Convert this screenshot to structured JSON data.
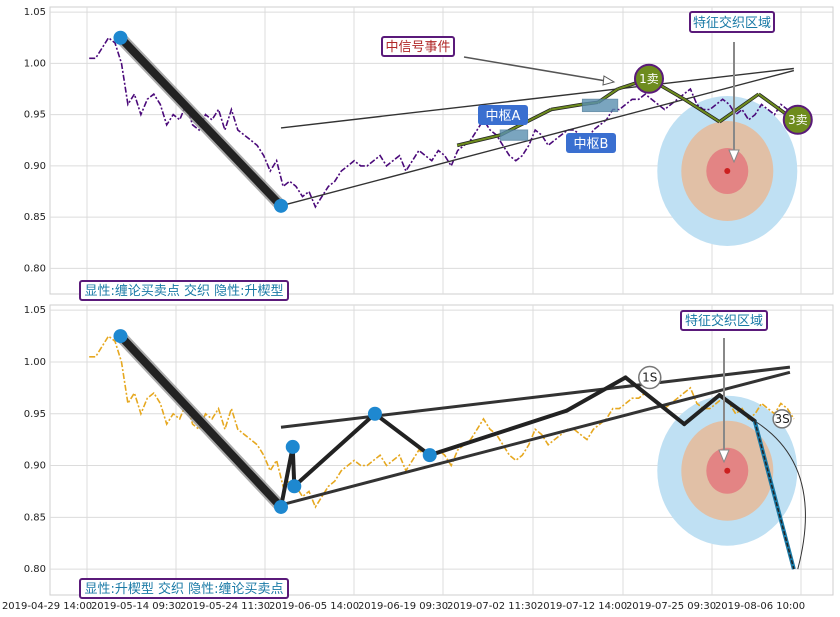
{
  "chart_data": [
    {
      "type": "line",
      "panel": "top",
      "y_ticks": [
        "1.05",
        "1.00",
        "0.95",
        "0.90",
        "0.85",
        "0.80"
      ],
      "ylim": [
        0.775,
        1.055
      ],
      "series_color": "#4b0a7a",
      "series": [
        {
          "values": [
            1.005,
            1.005,
            1.015,
            1.025,
            1.02,
            1.0,
            0.96,
            0.97,
            0.95,
            0.965,
            0.97,
            0.96,
            0.94,
            0.95,
            0.945,
            0.96,
            0.94,
            0.935,
            0.95,
            0.945,
            0.955,
            0.935,
            0.955,
            0.935,
            0.93,
            0.925,
            0.92,
            0.91,
            0.895,
            0.905,
            0.88,
            0.885,
            0.88,
            0.87,
            0.875,
            0.86,
            0.87,
            0.88,
            0.885,
            0.895,
            0.9,
            0.905,
            0.9,
            0.9,
            0.905,
            0.91,
            0.9,
            0.905,
            0.91,
            0.895,
            0.905,
            0.915,
            0.91,
            0.905,
            0.915,
            0.91,
            0.9,
            0.915,
            0.92,
            0.925,
            0.935,
            0.945,
            0.935,
            0.93,
            0.92,
            0.91,
            0.905,
            0.91,
            0.92,
            0.935,
            0.93,
            0.92,
            0.925,
            0.93,
            0.935,
            0.935,
            0.93,
            0.925,
            0.935,
            0.94,
            0.945,
            0.955,
            0.955,
            0.96,
            0.965,
            0.965,
            0.97,
            0.965,
            0.96,
            0.955,
            0.96,
            0.965,
            0.97,
            0.975,
            0.96,
            0.955,
            0.955,
            0.96,
            0.965,
            0.96,
            0.95,
            0.955,
            0.945,
            0.95,
            0.96,
            0.955,
            0.95,
            0.96,
            0.955,
            0.945
          ]
        }
      ],
      "zigzag": [
        {
          "x": 0.09,
          "y": 1.025
        },
        {
          "x": 0.295,
          "y": 0.861
        }
      ],
      "zigzag_color": "#222222",
      "nodes": [
        {
          "x": 0.09,
          "y": 1.025
        },
        {
          "x": 0.295,
          "y": 0.861
        }
      ],
      "trend_lines": [
        {
          "x1": 0.295,
          "y1": 0.937,
          "x2": 0.95,
          "y2": 0.995
        },
        {
          "x1": 0.295,
          "y1": 0.861,
          "x2": 0.95,
          "y2": 0.993
        }
      ],
      "lines_upper": [
        {
          "x1": 0.52,
          "y1": 0.92,
          "x2": 0.76,
          "y2": 0.985
        }
      ],
      "zigzag2": [
        {
          "x": 0.52,
          "y": 0.92
        },
        {
          "x": 0.575,
          "y": 0.93
        },
        {
          "x": 0.64,
          "y": 0.955
        },
        {
          "x": 0.68,
          "y": 0.96
        },
        {
          "x": 0.7,
          "y": 0.962
        },
        {
          "x": 0.725,
          "y": 0.975
        },
        {
          "x": 0.765,
          "y": 0.985
        },
        {
          "x": 0.81,
          "y": 0.965
        },
        {
          "x": 0.855,
          "y": 0.943
        },
        {
          "x": 0.905,
          "y": 0.97
        },
        {
          "x": 0.95,
          "y": 0.945
        }
      ],
      "zigzag2_color": "#6e8c1e",
      "central_boxes": [
        {
          "x1": 0.575,
          "x2": 0.61,
          "y1": 0.925,
          "y2": 0.935
        },
        {
          "x1": 0.68,
          "x2": 0.725,
          "y1": 0.953,
          "y2": 0.965
        }
      ],
      "ellipse_zone": {
        "cx": 0.865,
        "cy": 0.895
      },
      "label_legend": "显性:缠论买卖点 交织 隐性:升楔型",
      "annotations": {
        "zhong_signal": "中信号事件",
        "feature_zone": "特征交织区域",
        "zhongshu_a": "中枢A",
        "zhongshu_b": "中枢B",
        "sell1": "1卖",
        "sell3": "3卖"
      }
    },
    {
      "type": "line",
      "panel": "bottom",
      "y_ticks": [
        "1.05",
        "1.00",
        "0.95",
        "0.90",
        "0.85",
        "0.80"
      ],
      "ylim": [
        0.775,
        1.055
      ],
      "series_color": "#e6a820",
      "series": [
        {
          "values": [
            1.005,
            1.005,
            1.015,
            1.025,
            1.02,
            1.0,
            0.96,
            0.97,
            0.95,
            0.965,
            0.97,
            0.96,
            0.94,
            0.95,
            0.945,
            0.96,
            0.94,
            0.935,
            0.95,
            0.945,
            0.955,
            0.935,
            0.955,
            0.935,
            0.93,
            0.925,
            0.92,
            0.91,
            0.895,
            0.905,
            0.88,
            0.885,
            0.88,
            0.87,
            0.875,
            0.86,
            0.87,
            0.88,
            0.885,
            0.895,
            0.9,
            0.905,
            0.9,
            0.9,
            0.905,
            0.91,
            0.9,
            0.905,
            0.91,
            0.895,
            0.905,
            0.915,
            0.91,
            0.905,
            0.915,
            0.91,
            0.9,
            0.915,
            0.92,
            0.925,
            0.935,
            0.945,
            0.935,
            0.93,
            0.92,
            0.91,
            0.905,
            0.91,
            0.92,
            0.935,
            0.93,
            0.92,
            0.925,
            0.93,
            0.935,
            0.935,
            0.93,
            0.925,
            0.935,
            0.94,
            0.945,
            0.955,
            0.955,
            0.96,
            0.965,
            0.965,
            0.97,
            0.965,
            0.96,
            0.955,
            0.96,
            0.965,
            0.97,
            0.975,
            0.96,
            0.955,
            0.955,
            0.96,
            0.965,
            0.96,
            0.95,
            0.955,
            0.945,
            0.95,
            0.96,
            0.955,
            0.95,
            0.96,
            0.955,
            0.945
          ]
        }
      ],
      "zigzag": [
        {
          "x": 0.09,
          "y": 1.025
        },
        {
          "x": 0.295,
          "y": 0.86
        },
        {
          "x": 0.31,
          "y": 0.918
        },
        {
          "x": 0.312,
          "y": 0.88
        },
        {
          "x": 0.415,
          "y": 0.95
        },
        {
          "x": 0.485,
          "y": 0.91
        },
        {
          "x": 0.66,
          "y": 0.953
        },
        {
          "x": 0.735,
          "y": 0.985
        },
        {
          "x": 0.81,
          "y": 0.94
        },
        {
          "x": 0.855,
          "y": 0.968
        },
        {
          "x": 0.9,
          "y": 0.943
        }
      ],
      "zigzag_color": "#222222",
      "nodes": [
        {
          "x": 0.09,
          "y": 1.025
        },
        {
          "x": 0.295,
          "y": 0.86
        },
        {
          "x": 0.31,
          "y": 0.918
        },
        {
          "x": 0.312,
          "y": 0.88
        },
        {
          "x": 0.415,
          "y": 0.95
        },
        {
          "x": 0.485,
          "y": 0.91
        }
      ],
      "trend_lines": [
        {
          "x1": 0.295,
          "y1": 0.937,
          "x2": 0.945,
          "y2": 0.995
        },
        {
          "x1": 0.295,
          "y1": 0.862,
          "x2": 0.945,
          "y2": 0.99
        }
      ],
      "drop_line": [
        {
          "x": 0.9,
          "y": 0.943
        },
        {
          "x": 0.95,
          "y": 0.8
        }
      ],
      "ellipse_zone": {
        "cx": 0.865,
        "cy": 0.895
      },
      "label_legend": "显性:升楔型 交织 隐性:缠论买卖点",
      "annotations": {
        "feature_zone": "特征交织区域",
        "s1": "1S",
        "s3": "3S"
      },
      "x_ticks": [
        "2019-04-29 14:00",
        "2019-05-14 09:30",
        "2019-05-24 11:30",
        "2019-06-05 14:00",
        "2019-06-19 09:30",
        "2019-07-02 11:30",
        "2019-07-12 14:00",
        "2019-07-25 09:30",
        "2019-08-06 10:00"
      ]
    }
  ]
}
